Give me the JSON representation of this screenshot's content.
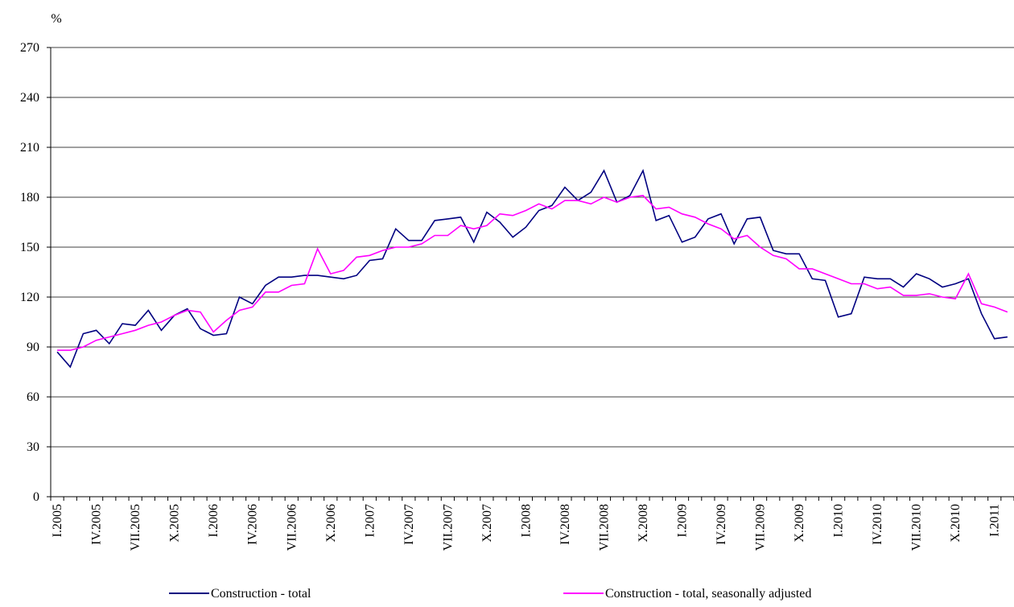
{
  "chart_data": {
    "type": "line",
    "y_label": "%",
    "ylim": [
      0,
      270
    ],
    "yticks": [
      0,
      30,
      60,
      90,
      120,
      150,
      180,
      210,
      240,
      270
    ],
    "grid": true,
    "categories": [
      "I.2005",
      null,
      null,
      "IV.2005",
      null,
      null,
      "VII.2005",
      null,
      null,
      "X.2005",
      null,
      null,
      "I.2006",
      null,
      null,
      "IV.2006",
      null,
      null,
      "VII.2006",
      null,
      null,
      "X.2006",
      null,
      null,
      "I.2007",
      null,
      null,
      "IV.2007",
      null,
      null,
      "VII.2007",
      null,
      null,
      "X.2007",
      null,
      null,
      "I.2008",
      null,
      null,
      "IV.2008",
      null,
      null,
      "VII.2008",
      null,
      null,
      "X.2008",
      null,
      null,
      "I.2009",
      null,
      null,
      "IV.2009",
      null,
      null,
      "VII.2009",
      null,
      null,
      "X.2009",
      null,
      null,
      "I.2010",
      null,
      null,
      "IV.2010",
      null,
      null,
      "VII.2010",
      null,
      null,
      "X.2010",
      null,
      null,
      "I.2011",
      null
    ],
    "series": [
      {
        "name": "Construction - total",
        "color": "#000080",
        "values": [
          87,
          78,
          98,
          100,
          92,
          104,
          103,
          112,
          100,
          109,
          113,
          101,
          97,
          98,
          120,
          116,
          127,
          132,
          132,
          133,
          133,
          132,
          131,
          133,
          142,
          143,
          161,
          154,
          154,
          166,
          167,
          168,
          153,
          171,
          165,
          156,
          162,
          172,
          175,
          186,
          178,
          183,
          196,
          177,
          181,
          196,
          166,
          169,
          153,
          156,
          167,
          170,
          152,
          167,
          168,
          148,
          146,
          146,
          131,
          130,
          108,
          110,
          132,
          131,
          131,
          126,
          134,
          131,
          126,
          128,
          131,
          110,
          95,
          96
        ]
      },
      {
        "name": "Construction - total, seasonally adjusted",
        "color": "#ff00ff",
        "values": [
          88,
          88,
          90,
          94,
          96,
          98,
          100,
          103,
          105,
          109,
          112,
          111,
          99,
          106,
          112,
          114,
          123,
          123,
          127,
          128,
          149,
          134,
          136,
          144,
          145,
          148,
          150,
          150,
          152,
          157,
          157,
          163,
          161,
          163,
          170,
          169,
          172,
          176,
          173,
          178,
          178,
          176,
          180,
          177,
          180,
          181,
          173,
          174,
          170,
          168,
          164,
          161,
          155,
          157,
          150,
          145,
          143,
          137,
          137,
          134,
          131,
          128,
          128,
          125,
          126,
          121,
          121,
          122,
          120,
          119,
          134,
          116,
          114,
          111
        ]
      }
    ]
  }
}
